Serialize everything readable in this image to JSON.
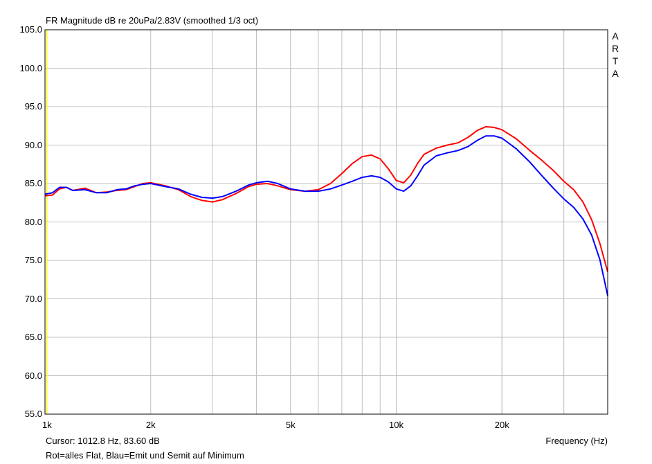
{
  "title": "FR Magnitude dB re 20uPa/2.83V (smoothed 1/3 oct)",
  "cursor_text": "Cursor: 1012.8 Hz, 83.60 dB",
  "legend_text": "Rot=alles Flat, Blau=Emit und Semit auf Minimum",
  "xlabel": "Frequency (Hz)",
  "watermark": "ARTA",
  "colors": {
    "background": "#ffffff",
    "grid": "#c0c0c0",
    "frame": "#000000",
    "series_flat": "#ff0000",
    "series_min": "#0000ff",
    "cursor": "#ffff00"
  },
  "chart_data": {
    "type": "line",
    "title": "FR Magnitude dB re 20uPa/2.83V (smoothed 1/3 oct)",
    "xlabel": "Frequency (Hz)",
    "ylabel": "",
    "xscale": "log",
    "xlim": [
      1000,
      40000
    ],
    "ylim": [
      55,
      105
    ],
    "grid": true,
    "x_ticks": [
      {
        "value": 1000,
        "label": "1k"
      },
      {
        "value": 2000,
        "label": "2k"
      },
      {
        "value": 5000,
        "label": "5k"
      },
      {
        "value": 10000,
        "label": "10k"
      },
      {
        "value": 20000,
        "label": "20k"
      },
      {
        "value": 40000,
        "label": "Frequency (Hz)"
      }
    ],
    "y_ticks": [
      {
        "value": 105,
        "label": "105.0"
      },
      {
        "value": 100,
        "label": "100.0"
      },
      {
        "value": 95,
        "label": "95.0"
      },
      {
        "value": 90,
        "label": "90.0"
      },
      {
        "value": 85,
        "label": "85.0"
      },
      {
        "value": 80,
        "label": "80.0"
      },
      {
        "value": 75,
        "label": "75.0"
      },
      {
        "value": 70,
        "label": "70.0"
      },
      {
        "value": 65,
        "label": "65.0"
      },
      {
        "value": 60,
        "label": "60.0"
      },
      {
        "value": 55,
        "label": "55.0"
      }
    ],
    "cursor_x": 1012.8,
    "series": [
      {
        "key": "flat",
        "color": "#ff0000",
        "x": [
          1000,
          1050,
          1100,
          1150,
          1200,
          1300,
          1400,
          1500,
          1600,
          1700,
          1800,
          1900,
          2000,
          2200,
          2400,
          2600,
          2800,
          3000,
          3200,
          3500,
          3800,
          4000,
          4300,
          4600,
          5000,
          5500,
          6000,
          6500,
          7000,
          7500,
          8000,
          8500,
          9000,
          9500,
          10000,
          10500,
          11000,
          11500,
          12000,
          13000,
          14000,
          15000,
          16000,
          17000,
          18000,
          19000,
          20000,
          22000,
          24000,
          26000,
          28000,
          30000,
          32000,
          34000,
          36000,
          38000,
          40000
        ],
        "y": [
          83.4,
          83.5,
          84.3,
          84.5,
          84.1,
          84.4,
          83.8,
          83.9,
          84.1,
          84.2,
          84.6,
          85.0,
          85.1,
          84.7,
          84.2,
          83.3,
          82.8,
          82.6,
          82.9,
          83.7,
          84.6,
          84.9,
          85.0,
          84.7,
          84.2,
          84.0,
          84.2,
          85.0,
          86.3,
          87.6,
          88.5,
          88.7,
          88.2,
          86.9,
          85.4,
          85.1,
          86.1,
          87.6,
          88.8,
          89.6,
          90.0,
          90.3,
          91.0,
          91.9,
          92.4,
          92.3,
          92.0,
          90.8,
          89.3,
          88.0,
          86.7,
          85.3,
          84.2,
          82.6,
          80.3,
          77.2,
          73.5
        ]
      },
      {
        "key": "min",
        "color": "#0000ff",
        "x": [
          1000,
          1050,
          1100,
          1150,
          1200,
          1300,
          1400,
          1500,
          1600,
          1700,
          1800,
          1900,
          2000,
          2200,
          2400,
          2600,
          2800,
          3000,
          3200,
          3500,
          3800,
          4000,
          4300,
          4600,
          5000,
          5500,
          6000,
          6500,
          7000,
          7500,
          8000,
          8500,
          9000,
          9500,
          10000,
          10500,
          11000,
          11500,
          12000,
          13000,
          14000,
          15000,
          16000,
          17000,
          18000,
          19000,
          20000,
          22000,
          24000,
          26000,
          28000,
          30000,
          32000,
          34000,
          36000,
          38000,
          40000
        ],
        "y": [
          83.6,
          83.8,
          84.5,
          84.5,
          84.1,
          84.2,
          83.8,
          83.8,
          84.2,
          84.3,
          84.7,
          84.9,
          85.0,
          84.6,
          84.3,
          83.6,
          83.2,
          83.1,
          83.3,
          84.0,
          84.8,
          85.1,
          85.3,
          85.0,
          84.3,
          84.0,
          84.0,
          84.3,
          84.8,
          85.3,
          85.8,
          86.0,
          85.8,
          85.2,
          84.3,
          84.0,
          84.7,
          86.0,
          87.4,
          88.6,
          89.0,
          89.3,
          89.8,
          90.6,
          91.2,
          91.2,
          90.9,
          89.5,
          87.8,
          86.0,
          84.4,
          83.0,
          81.9,
          80.4,
          78.3,
          75.1,
          70.4
        ]
      }
    ]
  }
}
